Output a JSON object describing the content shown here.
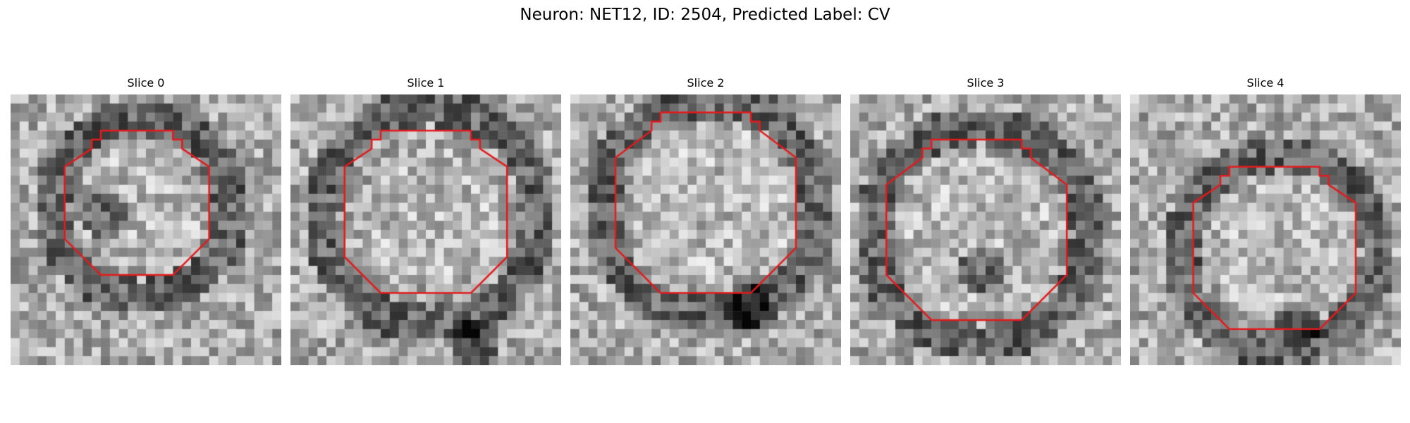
{
  "figure": {
    "title": "Neuron: NET12, ID: 2504, Predicted Label: CV",
    "contour_color": "#e41a1c",
    "colormap": "gray"
  },
  "panels": [
    {
      "title": "Slice 0",
      "icon": "grayscale-slice-image"
    },
    {
      "title": "Slice 1",
      "icon": "grayscale-slice-image"
    },
    {
      "title": "Slice 2",
      "icon": "grayscale-slice-image"
    },
    {
      "title": "Slice 3",
      "icon": "grayscale-slice-image"
    },
    {
      "title": "Slice 4",
      "icon": "grayscale-slice-image"
    }
  ]
}
